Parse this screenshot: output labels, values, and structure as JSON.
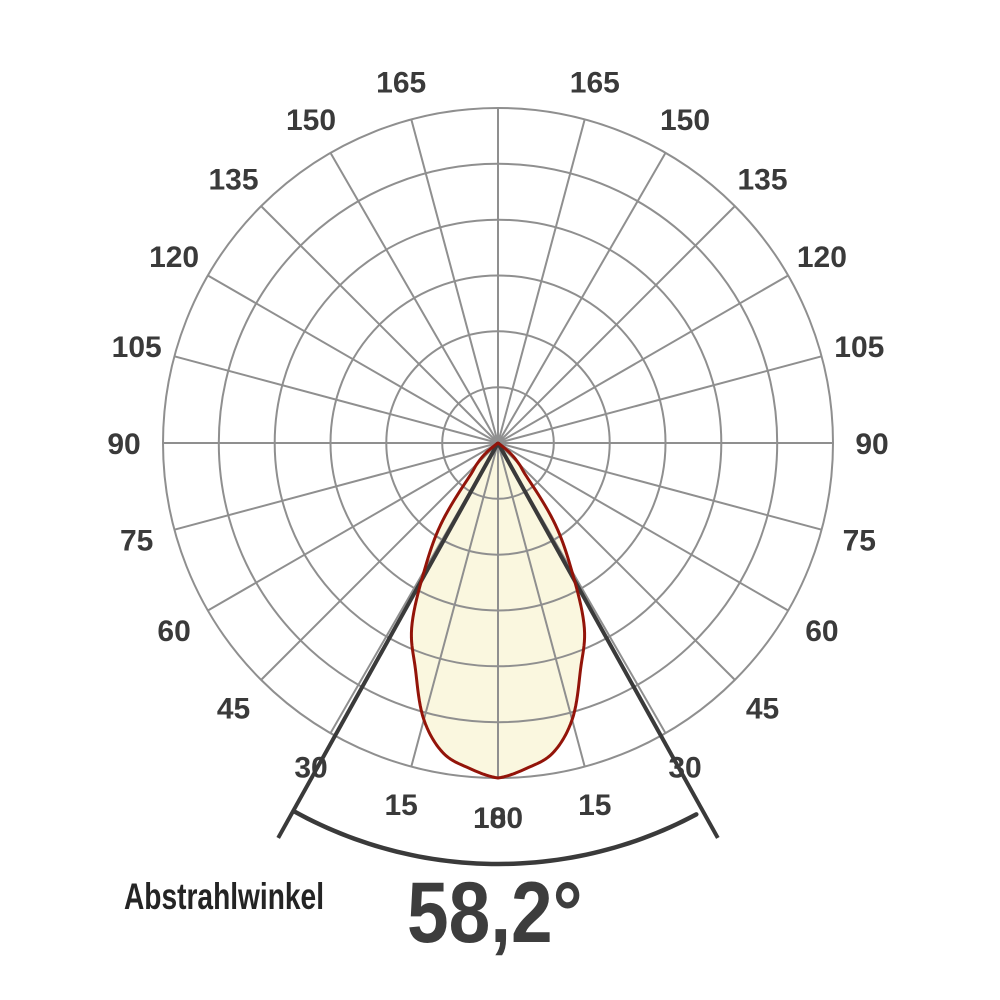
{
  "caption": {
    "label": "Abstrahlwinkel",
    "value": "58,2°"
  },
  "chart_data": {
    "type": "line",
    "coordinate_system": "polar",
    "description": "Luminous intensity distribution curve (light cone) of a luminaire; beam angle marked by two straight lines and an arc below the polar grid",
    "beam_angle_deg": 58.2,
    "half_beam_angle_deg": 29.1,
    "angle_tick_labels_deg": [
      0,
      15,
      30,
      45,
      60,
      75,
      90,
      105,
      120,
      135,
      150,
      165,
      180
    ],
    "spoke_step_deg": 15,
    "ring_count": 6,
    "radial_axis": "relative luminous intensity, 0 to 1.0 at outer ring",
    "profile": {
      "angles_deg": [
        0,
        5,
        10,
        15,
        20,
        25,
        30,
        35,
        40,
        45,
        50,
        55
      ],
      "relative_intensity": [
        1.0,
        0.975,
        0.94,
        0.855,
        0.72,
        0.61,
        0.44,
        0.3,
        0.14,
        0.09,
        0.05,
        0.0
      ]
    },
    "legend": "none",
    "grid": true,
    "colors": {
      "grid": "#8f8f8f",
      "lobe_fill": "#faf7df",
      "lobe_stroke": "#931409",
      "beam_marker": "#3a3a3a",
      "tick_label": "#3a3a3a",
      "caption_label": "#242424",
      "caption_value": "#3d3d3d"
    }
  }
}
